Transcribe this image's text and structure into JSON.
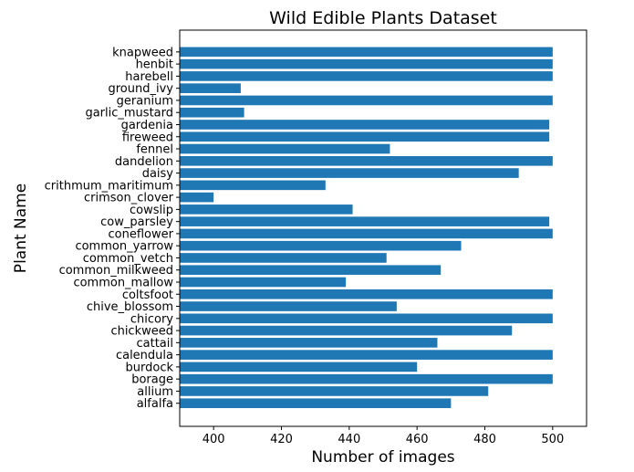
{
  "chart_data": {
    "type": "bar",
    "orientation": "horizontal",
    "title": "Wild Edible Plants Dataset",
    "xlabel": "Number of images",
    "ylabel": "Plant Name",
    "xlim": [
      390,
      510
    ],
    "xticks": [
      400,
      420,
      440,
      460,
      480,
      500
    ],
    "bar_color": "#1f77b4",
    "grid": false,
    "categories": [
      "alfalfa",
      "allium",
      "borage",
      "burdock",
      "calendula",
      "cattail",
      "chickweed",
      "chicory",
      "chive_blossom",
      "coltsfoot",
      "common_mallow",
      "common_milkweed",
      "common_vetch",
      "common_yarrow",
      "coneflower",
      "cow_parsley",
      "cowslip",
      "crimson_clover",
      "crithmum_maritimum",
      "daisy",
      "dandelion",
      "fennel",
      "fireweed",
      "gardenia",
      "garlic_mustard",
      "geranium",
      "ground_ivy",
      "harebell",
      "henbit",
      "knapweed"
    ],
    "values": [
      470,
      481,
      500,
      460,
      500,
      466,
      488,
      500,
      454,
      500,
      439,
      467,
      451,
      473,
      500,
      499,
      441,
      400,
      433,
      490,
      500,
      452,
      499,
      499,
      409,
      500,
      408,
      500,
      500,
      500
    ]
  }
}
